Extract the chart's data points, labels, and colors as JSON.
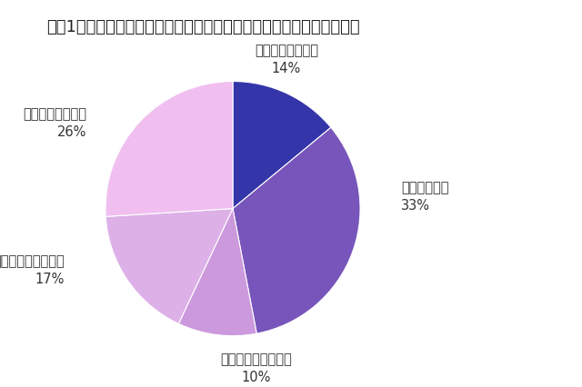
{
  "title": "【図1】進路選択において新型コロナウイルスの影響はありましたか？",
  "labels": [
    "非常に強く受けた",
    "多少は受けた",
    "どちらとも言えない",
    "あまり受けなかった",
    "全く受けなかった"
  ],
  "values": [
    14,
    33,
    10,
    17,
    26
  ],
  "percentages": [
    "14%",
    "33%",
    "10%",
    "17%",
    "26%"
  ],
  "colors": [
    "#3535aa",
    "#7755bb",
    "#cc99dd",
    "#ddb0e8",
    "#f0bff0"
  ],
  "startangle": 90,
  "title_fontsize": 13,
  "label_fontsize": 10.5,
  "pct_fontsize": 10.5
}
